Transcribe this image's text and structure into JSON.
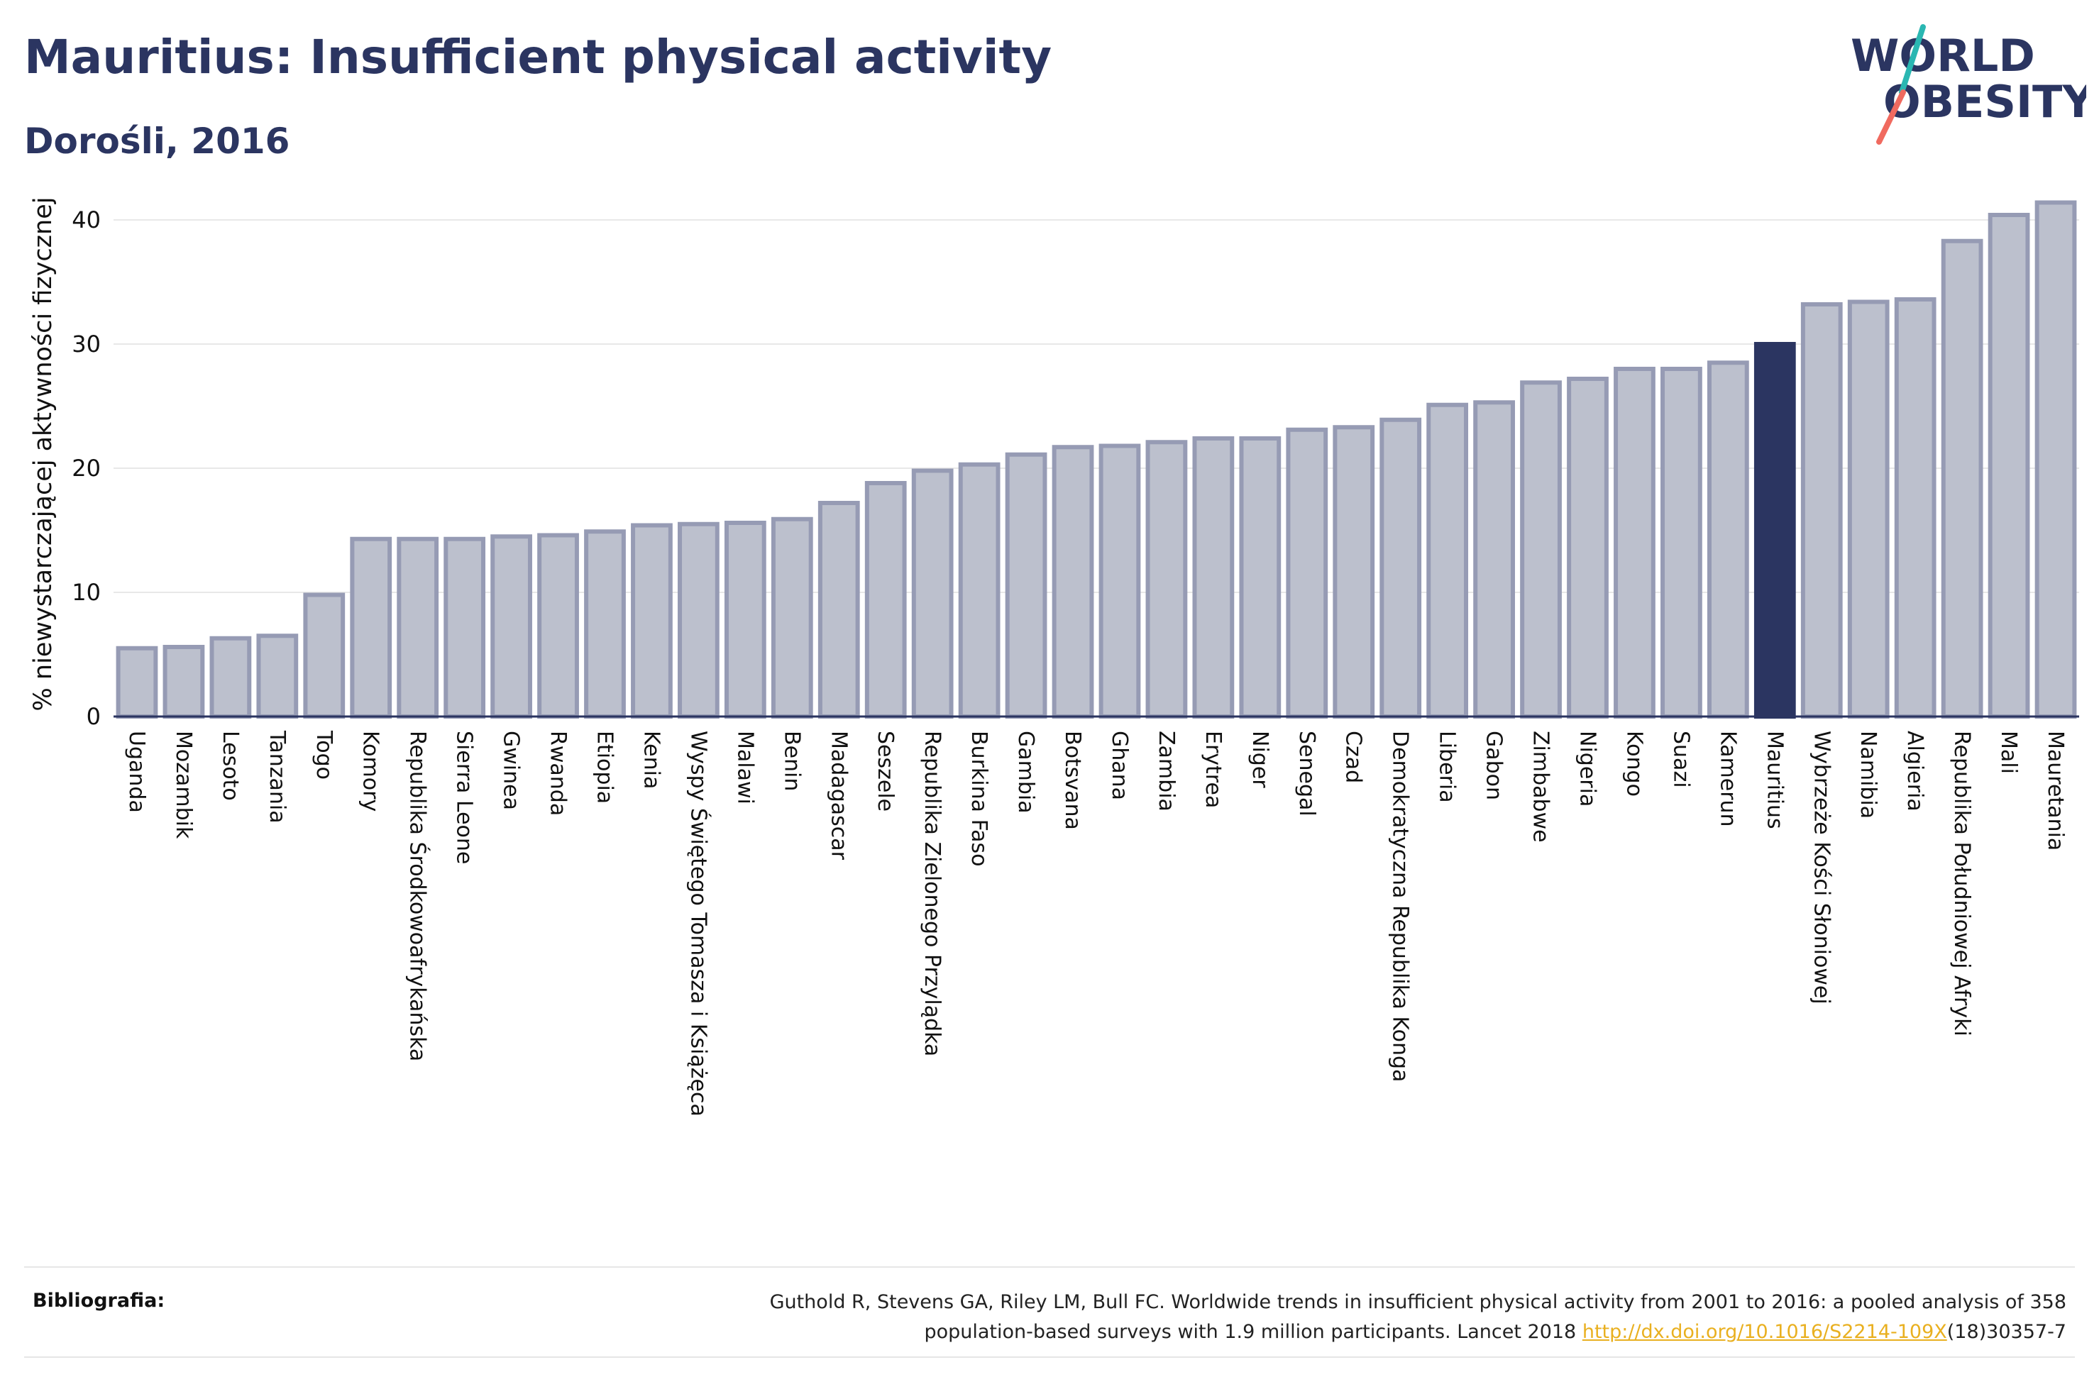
{
  "header": {
    "title": "Mauritius: Insufficient physical activity",
    "subtitle": "Dorośli, 2016"
  },
  "logo": {
    "line1": "WORLD",
    "line2": "OBESITY",
    "colors": {
      "text": "#2b3561",
      "teal": "#2ab7b2",
      "coral": "#f06a5f"
    }
  },
  "chart_data": {
    "type": "bar",
    "ylabel": "% niewystarczającej aktywności fizycznej",
    "xlabel": "",
    "ylim": [
      0,
      44
    ],
    "yticks": [
      0,
      10,
      20,
      30,
      40
    ],
    "grid": true,
    "highlight": "Mauritius",
    "colors": {
      "bar": "#bcc0cd",
      "bar_edge": "#969bb4",
      "highlight": "#2b3561",
      "grid": "#e8e8e8",
      "axis": "#2b3561"
    },
    "categories": [
      "Uganda",
      "Mozambik",
      "Lesoto",
      "Tanzania",
      "Togo",
      "Komory",
      "Republika Środkowoafrykańska",
      "Sierra Leone",
      "Gwinea",
      "Rwanda",
      "Etiopia",
      "Kenia",
      "Wyspy Świętego Tomasza i Książęca",
      "Malawi",
      "Benin",
      "Madagascar",
      "Seszele",
      "Republika Zielonego Przylądka",
      "Burkina Faso",
      "Gambia",
      "Botsvana",
      "Ghana",
      "Zambia",
      "Erytrea",
      "Niger",
      "Senegal",
      "Czad",
      "Demokratyczna Republika Konga",
      "Liberia",
      "Gabon",
      "Zimbabwe",
      "Nigeria",
      "Kongo",
      "Suazi",
      "Kamerun",
      "Mauritius",
      "Wybrzeże Kości Słoniowej",
      "Namibia",
      "Algieria",
      "Republika Południowej Afryki",
      "Mali",
      "Mauretania"
    ],
    "values": [
      5.5,
      5.6,
      6.3,
      6.5,
      9.8,
      14.3,
      14.3,
      14.3,
      14.5,
      14.6,
      14.9,
      15.4,
      15.5,
      15.6,
      15.9,
      17.2,
      18.8,
      19.8,
      20.3,
      21.1,
      21.7,
      21.8,
      22.1,
      22.4,
      22.4,
      23.1,
      23.3,
      23.9,
      25.1,
      25.3,
      26.9,
      27.2,
      28.0,
      28.0,
      28.5,
      30.0,
      33.2,
      33.4,
      33.6,
      38.3,
      40.4,
      41.4
    ]
  },
  "footer": {
    "label": "Bibliografia:",
    "citation_part1": "Guthold R, Stevens GA, Riley LM, Bull FC. Worldwide trends in insufficient physical activity from 2001 to 2016: a pooled analysis of 358",
    "citation_part2": "population-based surveys with 1.9 million participants. Lancet 2018 ",
    "link_text": "http://dx.doi.org/10.1016/S2214-109X",
    "citation_part3": "(18)30357-7"
  }
}
